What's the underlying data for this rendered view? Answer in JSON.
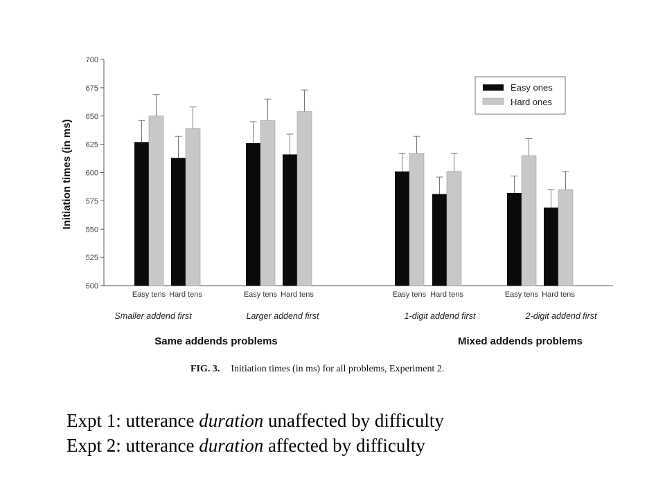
{
  "colors": {
    "easy": "#0a0a0a",
    "hard": "#c8c8c8",
    "axis": "#555555",
    "error": "#777777"
  },
  "chart_data": {
    "type": "bar",
    "ylabel": "Initiation times (in ms)",
    "ylim": [
      500,
      700
    ],
    "yticks": [
      "700",
      "675",
      "650",
      "625",
      "600",
      "575",
      "550",
      "525",
      "500"
    ],
    "legend": {
      "position": "top-right",
      "entries": [
        "Easy ones",
        "Hard ones"
      ]
    },
    "series": [
      {
        "name": "Easy ones",
        "values": [
          627,
          613,
          626,
          616,
          601,
          581,
          582,
          569
        ]
      },
      {
        "name": "Hard ones",
        "values": [
          650,
          639,
          646,
          654,
          617,
          601,
          615,
          585
        ]
      }
    ],
    "error_plus": {
      "easy": [
        19,
        19,
        19,
        18,
        16,
        15,
        15,
        16
      ],
      "hard": [
        19,
        19,
        19,
        19,
        15,
        16,
        15,
        16
      ]
    },
    "categories": [
      "Easy tens",
      "Hard tens",
      "Easy tens",
      "Hard tens",
      "Easy tens",
      "Hard tens",
      "Easy tens",
      "Hard tens"
    ],
    "groups": [
      "Smaller addend first",
      "Larger addend first",
      "1-digit addend first",
      "2-digit addend first"
    ],
    "supergroups": [
      "Same addends problems",
      "Mixed addends problems"
    ]
  },
  "caption": {
    "lead": "FIG. 3.",
    "text": "Initiation times (in ms) for all problems, Experiment 2."
  },
  "notes": [
    {
      "pre": "Expt 1: utterance ",
      "em": "duration",
      "post": " unaffected by difficulty"
    },
    {
      "pre": "Expt 2: utterance ",
      "em": "duration",
      "post": " affected by difficulty"
    }
  ]
}
